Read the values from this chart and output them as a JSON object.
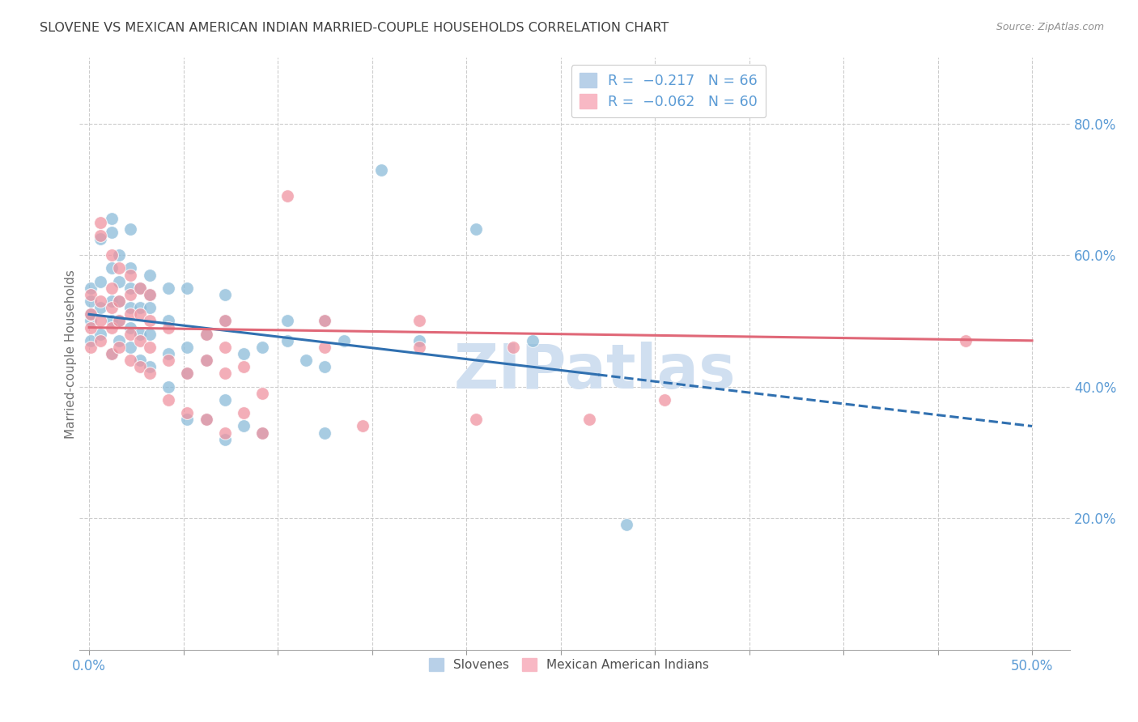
{
  "title": "SLOVENE VS MEXICAN AMERICAN INDIAN MARRIED-COUPLE HOUSEHOLDS CORRELATION CHART",
  "source": "Source: ZipAtlas.com",
  "ylabel": "Married-couple Households",
  "y_ticks": [
    0.2,
    0.4,
    0.6,
    0.8
  ],
  "y_tick_labels": [
    "20.0%",
    "40.0%",
    "60.0%",
    "80.0%"
  ],
  "x_ticks": [
    0.0,
    0.05,
    0.1,
    0.15,
    0.2,
    0.25,
    0.3,
    0.35,
    0.4,
    0.45,
    0.5
  ],
  "blue_color": "#8bbbd9",
  "pink_color": "#f093a0",
  "blue_line_color": "#3070b0",
  "pink_line_color": "#e06878",
  "watermark": "ZIPatlas",
  "watermark_color": "#d0dff0",
  "blue_scatter": [
    [
      0.001,
      0.47
    ],
    [
      0.001,
      0.5
    ],
    [
      0.001,
      0.51
    ],
    [
      0.001,
      0.53
    ],
    [
      0.001,
      0.55
    ],
    [
      0.006,
      0.48
    ],
    [
      0.006,
      0.52
    ],
    [
      0.006,
      0.56
    ],
    [
      0.006,
      0.625
    ],
    [
      0.012,
      0.45
    ],
    [
      0.012,
      0.5
    ],
    [
      0.012,
      0.53
    ],
    [
      0.012,
      0.58
    ],
    [
      0.012,
      0.635
    ],
    [
      0.012,
      0.655
    ],
    [
      0.016,
      0.47
    ],
    [
      0.016,
      0.5
    ],
    [
      0.016,
      0.53
    ],
    [
      0.016,
      0.56
    ],
    [
      0.016,
      0.6
    ],
    [
      0.022,
      0.46
    ],
    [
      0.022,
      0.49
    ],
    [
      0.022,
      0.52
    ],
    [
      0.022,
      0.55
    ],
    [
      0.022,
      0.58
    ],
    [
      0.022,
      0.64
    ],
    [
      0.027,
      0.44
    ],
    [
      0.027,
      0.48
    ],
    [
      0.027,
      0.52
    ],
    [
      0.027,
      0.55
    ],
    [
      0.032,
      0.43
    ],
    [
      0.032,
      0.48
    ],
    [
      0.032,
      0.52
    ],
    [
      0.032,
      0.54
    ],
    [
      0.032,
      0.57
    ],
    [
      0.042,
      0.4
    ],
    [
      0.042,
      0.45
    ],
    [
      0.042,
      0.5
    ],
    [
      0.042,
      0.55
    ],
    [
      0.052,
      0.35
    ],
    [
      0.052,
      0.42
    ],
    [
      0.052,
      0.46
    ],
    [
      0.052,
      0.55
    ],
    [
      0.062,
      0.35
    ],
    [
      0.062,
      0.44
    ],
    [
      0.062,
      0.48
    ],
    [
      0.072,
      0.32
    ],
    [
      0.072,
      0.38
    ],
    [
      0.072,
      0.5
    ],
    [
      0.072,
      0.54
    ],
    [
      0.082,
      0.34
    ],
    [
      0.082,
      0.45
    ],
    [
      0.092,
      0.33
    ],
    [
      0.092,
      0.46
    ],
    [
      0.105,
      0.47
    ],
    [
      0.105,
      0.5
    ],
    [
      0.115,
      0.44
    ],
    [
      0.125,
      0.33
    ],
    [
      0.125,
      0.43
    ],
    [
      0.125,
      0.5
    ],
    [
      0.135,
      0.47
    ],
    [
      0.155,
      0.73
    ],
    [
      0.175,
      0.47
    ],
    [
      0.205,
      0.64
    ],
    [
      0.235,
      0.47
    ],
    [
      0.285,
      0.19
    ]
  ],
  "pink_scatter": [
    [
      0.001,
      0.46
    ],
    [
      0.001,
      0.49
    ],
    [
      0.001,
      0.51
    ],
    [
      0.001,
      0.54
    ],
    [
      0.006,
      0.47
    ],
    [
      0.006,
      0.5
    ],
    [
      0.006,
      0.53
    ],
    [
      0.006,
      0.63
    ],
    [
      0.006,
      0.65
    ],
    [
      0.012,
      0.45
    ],
    [
      0.012,
      0.49
    ],
    [
      0.012,
      0.52
    ],
    [
      0.012,
      0.55
    ],
    [
      0.012,
      0.6
    ],
    [
      0.016,
      0.46
    ],
    [
      0.016,
      0.5
    ],
    [
      0.016,
      0.53
    ],
    [
      0.016,
      0.58
    ],
    [
      0.022,
      0.44
    ],
    [
      0.022,
      0.48
    ],
    [
      0.022,
      0.51
    ],
    [
      0.022,
      0.54
    ],
    [
      0.022,
      0.57
    ],
    [
      0.027,
      0.43
    ],
    [
      0.027,
      0.47
    ],
    [
      0.027,
      0.51
    ],
    [
      0.027,
      0.55
    ],
    [
      0.032,
      0.42
    ],
    [
      0.032,
      0.46
    ],
    [
      0.032,
      0.5
    ],
    [
      0.032,
      0.54
    ],
    [
      0.042,
      0.38
    ],
    [
      0.042,
      0.44
    ],
    [
      0.042,
      0.49
    ],
    [
      0.052,
      0.36
    ],
    [
      0.052,
      0.42
    ],
    [
      0.062,
      0.35
    ],
    [
      0.062,
      0.44
    ],
    [
      0.062,
      0.48
    ],
    [
      0.072,
      0.33
    ],
    [
      0.072,
      0.42
    ],
    [
      0.072,
      0.46
    ],
    [
      0.072,
      0.5
    ],
    [
      0.082,
      0.36
    ],
    [
      0.082,
      0.43
    ],
    [
      0.092,
      0.33
    ],
    [
      0.092,
      0.39
    ],
    [
      0.105,
      0.69
    ],
    [
      0.125,
      0.46
    ],
    [
      0.125,
      0.5
    ],
    [
      0.145,
      0.34
    ],
    [
      0.175,
      0.46
    ],
    [
      0.175,
      0.5
    ],
    [
      0.205,
      0.35
    ],
    [
      0.225,
      0.46
    ],
    [
      0.265,
      0.35
    ],
    [
      0.305,
      0.38
    ],
    [
      0.465,
      0.47
    ]
  ],
  "blue_line": {
    "x0": 0.0,
    "y0": 0.51,
    "x1": 0.5,
    "y1": 0.34
  },
  "blue_line_solid_end": 0.27,
  "pink_line": {
    "x0": 0.0,
    "y0": 0.49,
    "x1": 0.5,
    "y1": 0.47
  },
  "xlim": [
    -0.005,
    0.52
  ],
  "ylim": [
    0.0,
    0.9
  ],
  "background_color": "#ffffff",
  "grid_color": "#cccccc",
  "title_color": "#404040",
  "axis_color": "#5b9bd5"
}
